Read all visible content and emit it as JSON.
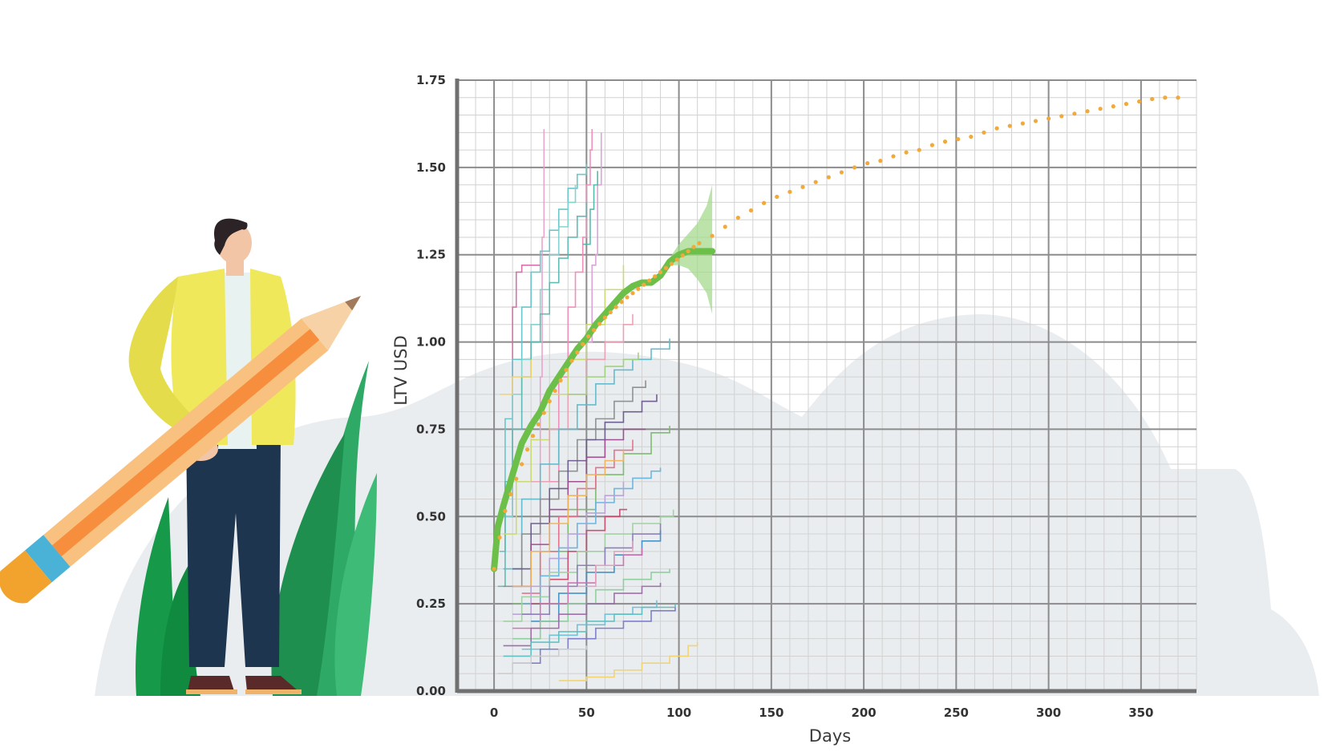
{
  "chart_data": {
    "type": "line",
    "xlabel": "Days",
    "ylabel": "LTV USD",
    "xlim": [
      -20,
      380
    ],
    "ylim": [
      0,
      1.75
    ],
    "x_ticks": [
      0,
      50,
      100,
      150,
      200,
      250,
      300,
      350
    ],
    "y_ticks": [
      "0.00",
      "0.25",
      "0.50",
      "0.75",
      "1.00",
      "1.25",
      "1.50",
      "1.75"
    ],
    "grid": true,
    "legend": "none",
    "colors": {
      "fitted": "#6cc04a",
      "forecast": "#f2a93b",
      "band": "#a6d98e",
      "grid_major": "#8c8c8c",
      "grid_minor": "#d2d2d2",
      "axis": "#707070"
    },
    "fitted_mean": {
      "x": [
        0,
        2,
        5,
        10,
        15,
        20,
        25,
        30,
        35,
        40,
        45,
        50,
        55,
        60,
        65,
        70,
        75,
        80,
        85,
        90,
        95,
        100,
        105,
        110,
        115,
        118
      ],
      "y": [
        0.35,
        0.47,
        0.53,
        0.62,
        0.71,
        0.76,
        0.8,
        0.86,
        0.9,
        0.94,
        0.98,
        1.01,
        1.05,
        1.08,
        1.11,
        1.14,
        1.16,
        1.17,
        1.17,
        1.19,
        1.23,
        1.25,
        1.26,
        1.26,
        1.26,
        1.26
      ]
    },
    "confidence_band": {
      "x": [
        95,
        100,
        105,
        110,
        115,
        118
      ],
      "upper": [
        1.24,
        1.28,
        1.31,
        1.34,
        1.39,
        1.45
      ],
      "lower": [
        1.22,
        1.22,
        1.21,
        1.18,
        1.14,
        1.08
      ]
    },
    "forecast": {
      "x": [
        0,
        5,
        10,
        20,
        30,
        40,
        50,
        60,
        70,
        80,
        90,
        100,
        110,
        120,
        130,
        140,
        150,
        160,
        170,
        180,
        190,
        200,
        210,
        220,
        230,
        240,
        250,
        260,
        270,
        280,
        290,
        300,
        310,
        320,
        330,
        340,
        350,
        360,
        370,
        375
      ],
      "y": [
        0.35,
        0.5,
        0.58,
        0.72,
        0.83,
        0.93,
        1.01,
        1.07,
        1.12,
        1.16,
        1.2,
        1.24,
        1.28,
        1.31,
        1.35,
        1.38,
        1.41,
        1.43,
        1.45,
        1.47,
        1.49,
        1.51,
        1.52,
        1.54,
        1.55,
        1.57,
        1.58,
        1.59,
        1.61,
        1.62,
        1.63,
        1.64,
        1.65,
        1.66,
        1.67,
        1.68,
        1.69,
        1.7,
        1.7,
        1.71
      ]
    },
    "cohort_lines": [
      {
        "color": "#e8a0c8",
        "x": [
          25,
          25,
          26,
          27
        ],
        "y": [
          0.3,
          0.9,
          1.3,
          1.61
        ]
      },
      {
        "color": "#d46ca8",
        "x": [
          8,
          10,
          12,
          15,
          18,
          22,
          25
        ],
        "y": [
          0.5,
          1.1,
          1.2,
          1.22,
          1.22,
          1.22,
          1.22
        ]
      },
      {
        "color": "#f08ab8",
        "x": [
          30,
          35,
          40,
          44,
          48,
          50,
          52,
          53
        ],
        "y": [
          0.6,
          0.9,
          1.1,
          1.2,
          1.3,
          1.45,
          1.55,
          1.61
        ]
      },
      {
        "color": "#d9a0d6",
        "x": [
          50,
          53,
          55,
          56,
          58
        ],
        "y": [
          1.0,
          1.22,
          1.25,
          1.45,
          1.6
        ]
      },
      {
        "color": "#62c4c8",
        "x": [
          3,
          6,
          10,
          15,
          20,
          25,
          30,
          35,
          40,
          45,
          50
        ],
        "y": [
          0.4,
          0.78,
          0.95,
          1.1,
          1.2,
          1.26,
          1.32,
          1.38,
          1.44,
          1.48,
          1.51
        ]
      },
      {
        "color": "#7fd1cc",
        "x": [
          5,
          10,
          15,
          20,
          25,
          30,
          35,
          40,
          44
        ],
        "y": [
          0.5,
          0.85,
          0.95,
          1.05,
          1.15,
          1.25,
          1.33,
          1.4,
          1.45
        ]
      },
      {
        "color": "#5bb8b0",
        "x": [
          2,
          6,
          10,
          15,
          20,
          25,
          30,
          35,
          40,
          45,
          50
        ],
        "y": [
          0.3,
          0.6,
          0.75,
          0.9,
          1.0,
          1.08,
          1.17,
          1.24,
          1.3,
          1.36,
          1.4
        ]
      },
      {
        "color": "#4fb7a8",
        "x": [
          48,
          52,
          54,
          56
        ],
        "y": [
          1.28,
          1.38,
          1.45,
          1.49
        ]
      },
      {
        "color": "#c8d96f",
        "x": [
          5,
          12,
          20,
          30,
          40,
          50,
          60,
          70
        ],
        "y": [
          0.45,
          0.6,
          0.72,
          0.85,
          0.95,
          1.05,
          1.15,
          1.22
        ]
      },
      {
        "color": "#e9a0b0",
        "x": [
          20,
          30,
          40,
          50,
          60,
          70,
          75
        ],
        "y": [
          0.6,
          0.75,
          0.85,
          0.95,
          1.0,
          1.05,
          1.08
        ]
      },
      {
        "color": "#5fb9c9",
        "x": [
          5,
          15,
          25,
          35,
          45,
          55,
          65,
          75,
          85,
          95
        ],
        "y": [
          0.35,
          0.55,
          0.65,
          0.75,
          0.82,
          0.88,
          0.92,
          0.95,
          0.98,
          1.01
        ]
      },
      {
        "color": "#8c8c8c",
        "x": [
          5,
          15,
          25,
          35,
          45,
          55,
          65,
          75,
          82
        ],
        "y": [
          0.3,
          0.45,
          0.55,
          0.63,
          0.72,
          0.78,
          0.83,
          0.87,
          0.89
        ]
      },
      {
        "color": "#6a5a8a",
        "x": [
          10,
          20,
          30,
          40,
          50,
          60,
          70,
          80,
          88
        ],
        "y": [
          0.35,
          0.48,
          0.58,
          0.66,
          0.72,
          0.77,
          0.8,
          0.83,
          0.85
        ]
      },
      {
        "color": "#9b4a8a",
        "x": [
          10,
          20,
          30,
          40,
          50,
          60,
          70,
          82
        ],
        "y": [
          0.3,
          0.42,
          0.52,
          0.6,
          0.67,
          0.72,
          0.75,
          0.75
        ]
      },
      {
        "color": "#7ab86a",
        "x": [
          10,
          25,
          40,
          55,
          70,
          85,
          95
        ],
        "y": [
          0.25,
          0.4,
          0.52,
          0.62,
          0.68,
          0.74,
          0.76
        ]
      },
      {
        "color": "#e06f8a",
        "x": [
          15,
          25,
          35,
          45,
          55,
          65,
          75
        ],
        "y": [
          0.28,
          0.4,
          0.5,
          0.58,
          0.64,
          0.69,
          0.72
        ]
      },
      {
        "color": "#f0b35a",
        "x": [
          10,
          20,
          30,
          40,
          50,
          60,
          70
        ],
        "y": [
          0.3,
          0.4,
          0.48,
          0.56,
          0.62,
          0.66,
          0.69
        ]
      },
      {
        "color": "#66b3e0",
        "x": [
          15,
          25,
          35,
          45,
          55,
          65,
          75,
          85,
          90
        ],
        "y": [
          0.25,
          0.33,
          0.41,
          0.48,
          0.54,
          0.58,
          0.61,
          0.63,
          0.64
        ]
      },
      {
        "color": "#b8a0d8",
        "x": [
          10,
          20,
          30,
          40,
          50,
          60,
          70
        ],
        "y": [
          0.22,
          0.3,
          0.38,
          0.45,
          0.51,
          0.56,
          0.6
        ]
      },
      {
        "color": "#c84a6a",
        "x": [
          20,
          30,
          40,
          50,
          60,
          68,
          72
        ],
        "y": [
          0.25,
          0.32,
          0.4,
          0.46,
          0.5,
          0.52,
          0.52
        ]
      },
      {
        "color": "#a0d0a0",
        "x": [
          5,
          15,
          30,
          45,
          60,
          75,
          90,
          97
        ],
        "y": [
          0.2,
          0.27,
          0.34,
          0.4,
          0.45,
          0.48,
          0.5,
          0.52
        ]
      },
      {
        "color": "#8a7ab8",
        "x": [
          15,
          30,
          45,
          60,
          75,
          90
        ],
        "y": [
          0.22,
          0.3,
          0.36,
          0.41,
          0.45,
          0.48
        ]
      },
      {
        "color": "#3f8fc4",
        "x": [
          20,
          35,
          50,
          65,
          80,
          90
        ],
        "y": [
          0.2,
          0.28,
          0.34,
          0.39,
          0.43,
          0.46
        ]
      },
      {
        "color": "#d06fb0",
        "x": [
          10,
          25,
          40,
          55,
          70,
          80
        ],
        "y": [
          0.18,
          0.25,
          0.31,
          0.36,
          0.39,
          0.41
        ]
      },
      {
        "color": "#8ccd9a",
        "x": [
          10,
          25,
          40,
          55,
          70,
          85,
          95
        ],
        "y": [
          0.15,
          0.2,
          0.25,
          0.29,
          0.32,
          0.34,
          0.35
        ]
      },
      {
        "color": "#9a6aa8",
        "x": [
          5,
          20,
          35,
          50,
          65,
          80,
          90
        ],
        "y": [
          0.13,
          0.18,
          0.22,
          0.25,
          0.28,
          0.3,
          0.31
        ]
      },
      {
        "color": "#6fbfd8",
        "x": [
          15,
          30,
          45,
          60,
          75,
          88
        ],
        "y": [
          0.12,
          0.16,
          0.19,
          0.22,
          0.24,
          0.26
        ]
      },
      {
        "color": "#5dbfc0",
        "x": [
          5,
          20,
          35,
          50,
          65,
          80,
          98
        ],
        "y": [
          0.1,
          0.14,
          0.17,
          0.2,
          0.22,
          0.24,
          0.25
        ]
      },
      {
        "color": "#7a7ac8",
        "x": [
          10,
          25,
          40,
          55,
          70,
          85,
          98
        ],
        "y": [
          0.08,
          0.12,
          0.15,
          0.18,
          0.2,
          0.23,
          0.24
        ]
      },
      {
        "color": "#f2d36a",
        "x": [
          3,
          10,
          20
        ],
        "y": [
          0.85,
          0.9,
          0.95
        ]
      },
      {
        "color": "#f2d36a",
        "x": [
          35,
          50,
          65,
          80,
          95,
          105,
          110
        ],
        "y": [
          0.03,
          0.04,
          0.06,
          0.08,
          0.1,
          0.13,
          0.14
        ]
      },
      {
        "color": "#cccccc",
        "x": [
          2,
          10,
          20,
          35,
          50
        ],
        "y": [
          0.05,
          0.08,
          0.1,
          0.12,
          0.13
        ]
      },
      {
        "color": "#e6a0c0",
        "x": [
          45,
          55,
          65,
          75
        ],
        "y": [
          0.3,
          0.36,
          0.4,
          0.43
        ]
      },
      {
        "color": "#9fd07a",
        "x": [
          40,
          50,
          60,
          70,
          78
        ],
        "y": [
          0.85,
          0.9,
          0.93,
          0.95,
          0.97
        ]
      }
    ]
  }
}
